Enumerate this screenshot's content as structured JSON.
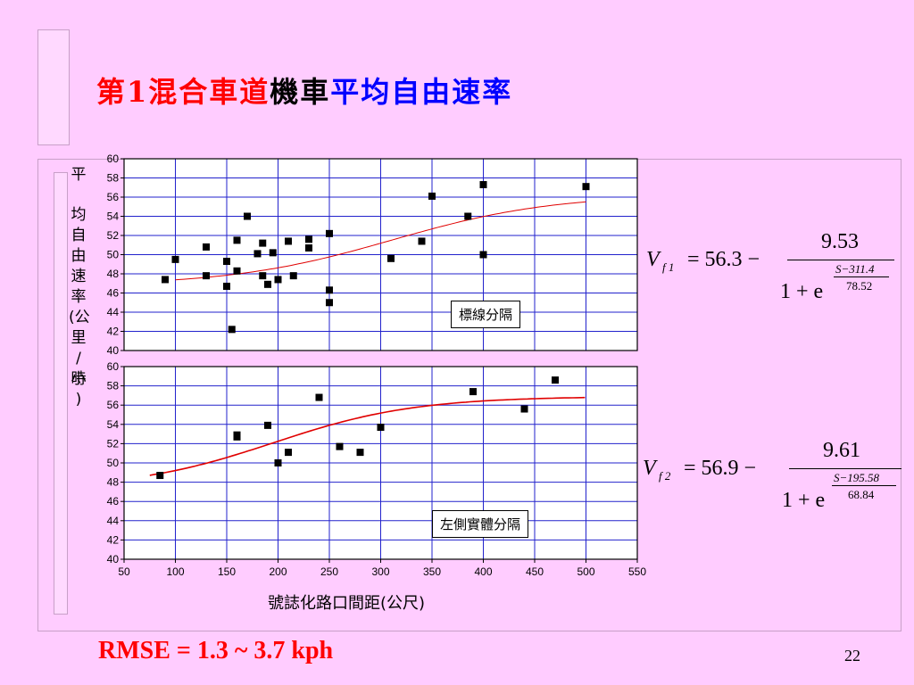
{
  "title": {
    "part1": "第1混合車道",
    "part2": "機車",
    "part3": "平均自由速率",
    "colors": {
      "part1": "#ff0000",
      "part2": "#000000",
      "part3": "#0000ff"
    }
  },
  "y_axis_label": [
    "平",
    "均",
    "自",
    "由",
    "速",
    "率",
    "(公",
    "里",
    "/小",
    "時",
    ")"
  ],
  "x_axis_label": "號誌化路口間距(公尺)",
  "box_labels": {
    "top": "標線分隔",
    "bottom": "左側實體分隔"
  },
  "equations": {
    "top": {
      "lhs": "V",
      "sub": "f 1",
      "const": "= 56.3 −",
      "num": "9.53",
      "den_base": "1 + e",
      "exp_num": "S−311.4",
      "exp_den": "78.52"
    },
    "bottom": {
      "lhs": "V",
      "sub": "f 2",
      "const": "= 56.9 −",
      "num": "9.61",
      "den_base": "1 + e",
      "exp_num": "S−195.58",
      "exp_den": "68.84"
    }
  },
  "footer": {
    "rmse": "RMSE = 1.3 ~ 3.7 kph",
    "page": "22"
  },
  "chart_data": [
    {
      "type": "scatter",
      "name": "標線分隔",
      "xlim": [
        50,
        550
      ],
      "ylim": [
        40,
        60
      ],
      "x_ticks": [
        50,
        100,
        150,
        200,
        250,
        300,
        350,
        400,
        450,
        500,
        550
      ],
      "y_ticks": [
        40,
        42,
        44,
        46,
        48,
        50,
        52,
        54,
        56,
        58,
        60
      ],
      "grid": true,
      "points": [
        [
          90,
          47.4
        ],
        [
          100,
          49.5
        ],
        [
          130,
          50.8
        ],
        [
          130,
          47.8
        ],
        [
          150,
          49.3
        ],
        [
          150,
          46.7
        ],
        [
          155,
          42.2
        ],
        [
          160,
          51.5
        ],
        [
          160,
          48.3
        ],
        [
          170,
          54.0
        ],
        [
          180,
          50.1
        ],
        [
          185,
          51.2
        ],
        [
          185,
          47.8
        ],
        [
          190,
          46.9
        ],
        [
          195,
          50.2
        ],
        [
          200,
          47.4
        ],
        [
          210,
          51.4
        ],
        [
          215,
          47.8
        ],
        [
          230,
          51.6
        ],
        [
          230,
          50.7
        ],
        [
          250,
          52.2
        ],
        [
          250,
          46.3
        ],
        [
          250,
          45.0
        ],
        [
          310,
          49.6
        ],
        [
          340,
          51.4
        ],
        [
          350,
          56.1
        ],
        [
          385,
          54.0
        ],
        [
          400,
          57.3
        ],
        [
          400,
          50.0
        ],
        [
          500,
          57.1
        ]
      ],
      "fit": {
        "a": 56.3,
        "b": 9.53,
        "c": 311.4,
        "d": 78.52,
        "x_range": [
          100,
          500
        ],
        "color": "#e00000"
      }
    },
    {
      "type": "scatter",
      "name": "左側實體分隔",
      "xlim": [
        50,
        550
      ],
      "ylim": [
        40,
        60
      ],
      "x_ticks": [
        50,
        100,
        150,
        200,
        250,
        300,
        350,
        400,
        450,
        500,
        550
      ],
      "x_tick_labels": [
        "50",
        "100",
        "150",
        "200",
        "250",
        "300",
        "350",
        "400",
        "450",
        "500",
        "550"
      ],
      "y_ticks": [
        40,
        42,
        44,
        46,
        48,
        50,
        52,
        54,
        56,
        58,
        60
      ],
      "grid": true,
      "points": [
        [
          85,
          48.7
        ],
        [
          160,
          52.7
        ],
        [
          160,
          52.9
        ],
        [
          190,
          53.9
        ],
        [
          200,
          50.0
        ],
        [
          210,
          51.1
        ],
        [
          240,
          56.8
        ],
        [
          260,
          51.7
        ],
        [
          280,
          51.1
        ],
        [
          300,
          53.7
        ],
        [
          390,
          57.4
        ],
        [
          440,
          55.6
        ],
        [
          470,
          58.6
        ]
      ],
      "fit": {
        "a": 56.9,
        "b": 9.61,
        "c": 195.58,
        "d": 68.84,
        "x_range": [
          75,
          500
        ],
        "color": "#e00000"
      }
    }
  ]
}
